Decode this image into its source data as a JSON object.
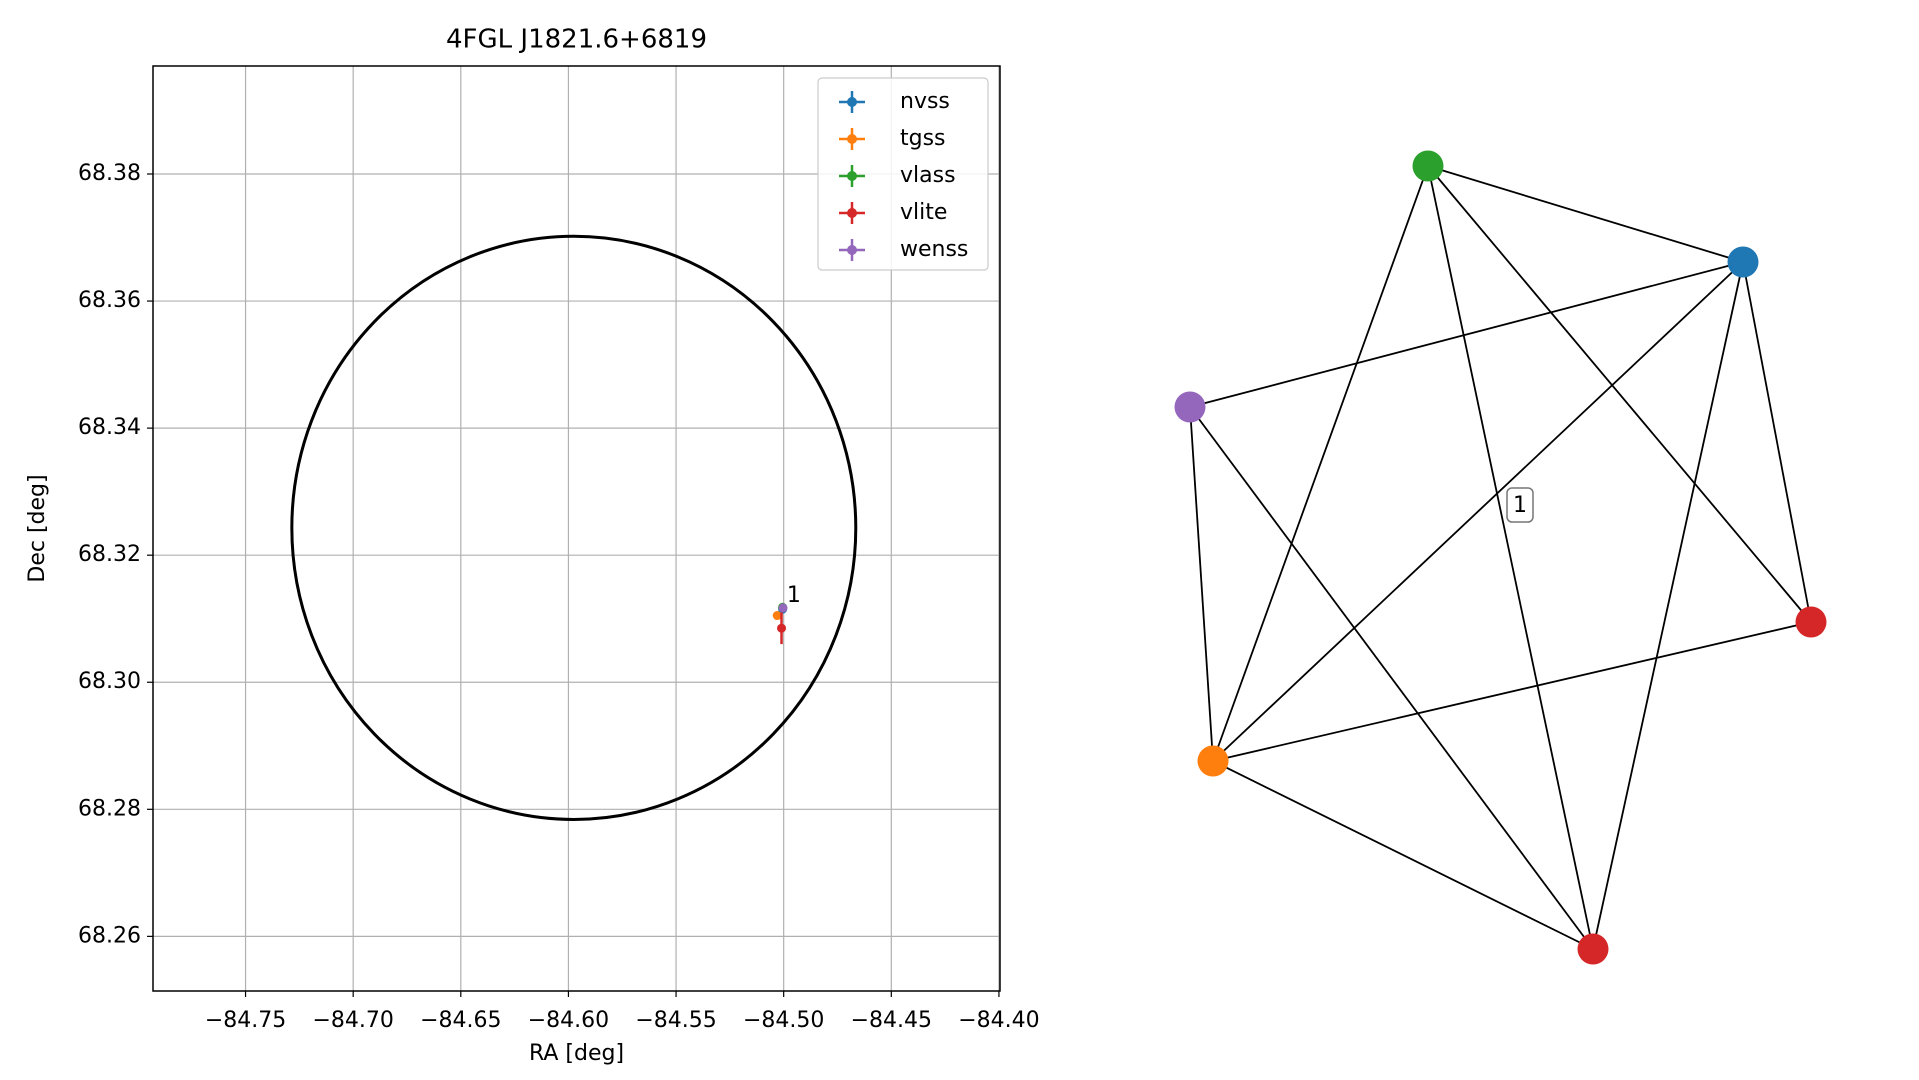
{
  "chart_data": [
    {
      "type": "scatter",
      "title": "4FGL J1821.6+6819",
      "x_label": "RA [deg]",
      "y_label": "Dec [deg]",
      "xlim": [
        -84.793,
        -84.3995
      ],
      "ylim": [
        68.2514,
        68.397
      ],
      "xticks": [
        {
          "value": -84.75,
          "label": "−84.75"
        },
        {
          "value": -84.7,
          "label": "−84.70"
        },
        {
          "value": -84.65,
          "label": "−84.65"
        },
        {
          "value": -84.6,
          "label": "−84.60"
        },
        {
          "value": -84.55,
          "label": "−84.55"
        },
        {
          "value": -84.5,
          "label": "−84.50"
        },
        {
          "value": -84.45,
          "label": "−84.45"
        },
        {
          "value": -84.4,
          "label": "−84.40"
        }
      ],
      "yticks": [
        68.26,
        68.28,
        {
          "value": 68.3,
          "label": "68.30"
        },
        68.32,
        68.34,
        68.36,
        68.38
      ],
      "grid": true,
      "legend": "upper right",
      "series": [
        {
          "name": "nvss",
          "color": "#1f77b4",
          "x": [
            -84.5005
          ],
          "values": [
            68.3115
          ],
          "yerr": [
            0.0004
          ]
        },
        {
          "name": "tgss",
          "color": "#ff7f0e",
          "x": [
            -84.503
          ],
          "values": [
            68.3105
          ],
          "yerr": [
            0.0006
          ]
        },
        {
          "name": "vlass",
          "color": "#2ca02c",
          "x": [
            -84.5005
          ],
          "values": [
            68.3118
          ],
          "yerr": [
            0.0002
          ]
        },
        {
          "name": "vlite",
          "color": "#d62728",
          "x": [
            -84.501
          ],
          "values": [
            68.3085
          ],
          "yerr": [
            0.0025
          ]
        },
        {
          "name": "wenss",
          "color": "#9467bd",
          "x": [
            -84.5003
          ],
          "values": [
            68.3117
          ],
          "yerr": [
            0.0005
          ]
        }
      ],
      "ellipse": {
        "x": -84.5975,
        "y": 68.3243,
        "width": 0.262,
        "height": 0.0918,
        "color": "#000000"
      },
      "annotations": [
        {
          "text": "1",
          "x": -84.4985,
          "y": 68.3136
        }
      ]
    },
    {
      "type": "network",
      "label": "1",
      "nodes": [
        {
          "color": "#2ca02c"
        },
        {
          "color": "#1f77b4"
        },
        {
          "color": "#9467bd"
        },
        {
          "color": "#d62728"
        },
        {
          "color": "#ff7f0e"
        },
        {
          "color": "#d62728"
        }
      ],
      "edges": [
        [
          0,
          1
        ],
        [
          0,
          4
        ],
        [
          0,
          5
        ],
        [
          0,
          3
        ],
        [
          1,
          2
        ],
        [
          1,
          4
        ],
        [
          1,
          3
        ],
        [
          1,
          5
        ],
        [
          2,
          4
        ],
        [
          2,
          5
        ],
        [
          4,
          3
        ],
        [
          4,
          5
        ]
      ]
    }
  ]
}
